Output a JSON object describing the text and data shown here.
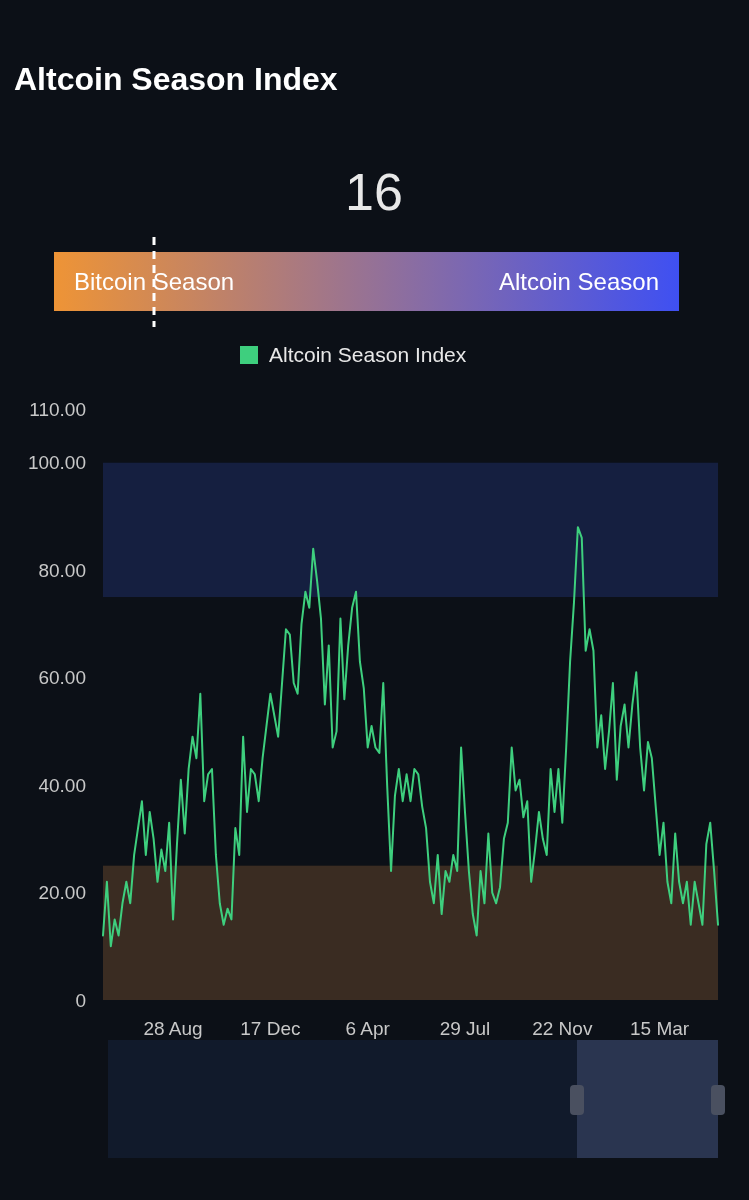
{
  "chart_data": [
    {
      "type": "other",
      "title": "Altcoin Season Index",
      "values": [
        16
      ],
      "data_labels": true,
      "annotations": [
        "Bitcoin Season",
        "Altcoin Season"
      ]
    },
    {
      "type": "line",
      "categories": [
        null,
        null,
        null,
        null,
        null,
        null,
        null,
        null,
        null,
        null,
        null,
        null,
        null,
        null,
        null,
        null,
        null,
        null,
        "28 Aug",
        null,
        null,
        null,
        null,
        null,
        null,
        null,
        null,
        null,
        null,
        null,
        null,
        null,
        null,
        null,
        null,
        null,
        null,
        null,
        null,
        null,
        null,
        null,
        null,
        "17 Dec",
        null,
        null,
        null,
        null,
        null,
        null,
        null,
        null,
        null,
        null,
        null,
        null,
        null,
        null,
        null,
        null,
        null,
        null,
        null,
        null,
        null,
        null,
        null,
        null,
        "6 Apr",
        null,
        null,
        null,
        null,
        null,
        null,
        null,
        null,
        null,
        null,
        null,
        null,
        null,
        null,
        null,
        null,
        null,
        null,
        null,
        null,
        null,
        null,
        null,
        null,
        "29 Jul",
        null,
        null,
        null,
        null,
        null,
        null,
        null,
        null,
        null,
        null,
        null,
        null,
        null,
        null,
        null,
        null,
        null,
        null,
        null,
        null,
        null,
        null,
        null,
        null,
        "22 Nov",
        null,
        null,
        null,
        null,
        null,
        null,
        null,
        null,
        null,
        null,
        null,
        null,
        null,
        null,
        null,
        null,
        null,
        null,
        null,
        null,
        null,
        null,
        null,
        null,
        "15 Mar",
        null,
        null,
        null,
        null,
        null,
        null,
        null,
        null,
        null,
        null,
        null,
        null,
        null,
        null,
        null
      ],
      "series": [
        {
          "name": "Altcoin Season Index",
          "color": "#3ecf7e",
          "values": [
            12,
            22,
            10,
            15,
            12,
            18,
            22,
            18,
            27,
            32,
            37,
            27,
            35,
            30,
            22,
            28,
            24,
            33,
            15,
            29,
            41,
            31,
            43,
            49,
            45,
            57,
            37,
            42,
            43,
            27,
            18,
            14,
            17,
            15,
            32,
            27,
            49,
            35,
            43,
            42,
            37,
            45,
            51,
            57,
            53,
            49,
            59,
            69,
            68,
            59,
            57,
            70,
            76,
            73,
            84,
            78,
            71,
            55,
            66,
            47,
            50,
            71,
            56,
            66,
            73,
            76,
            63,
            58,
            47,
            51,
            47,
            46,
            59,
            40,
            24,
            38,
            43,
            37,
            42,
            37,
            43,
            42,
            36,
            32,
            22,
            18,
            27,
            16,
            24,
            22,
            27,
            24,
            47,
            35,
            24,
            16,
            12,
            24,
            18,
            31,
            20,
            18,
            21,
            30,
            33,
            47,
            39,
            41,
            34,
            37,
            22,
            28,
            35,
            30,
            27,
            43,
            35,
            43,
            33,
            47,
            63,
            74,
            88,
            86,
            65,
            69,
            65,
            47,
            53,
            43,
            50,
            59,
            41,
            51,
            55,
            47,
            55,
            61,
            47,
            39,
            48,
            45,
            36,
            27,
            33,
            22,
            18,
            31,
            22,
            18,
            22,
            14,
            22,
            18,
            14,
            29,
            33,
            24,
            14
          ]
        }
      ],
      "ylim": [
        0,
        110
      ],
      "yticks": [
        0,
        {
          "value": 20,
          "label": "20.00"
        },
        {
          "value": 40,
          "label": "40.00"
        },
        {
          "value": 60,
          "label": "60.00"
        },
        {
          "value": 80,
          "label": "80.00"
        },
        {
          "value": 100,
          "label": "100.00"
        },
        {
          "value": 110,
          "label": "110.00"
        }
      ],
      "bands": [
        {
          "axis": "y",
          "from": 0,
          "to": 25,
          "color": "#3a2c22"
        },
        {
          "axis": "y",
          "from": 75,
          "to": 100,
          "color": "#151f40"
        }
      ],
      "legend": "top",
      "grid": false
    }
  ]
}
